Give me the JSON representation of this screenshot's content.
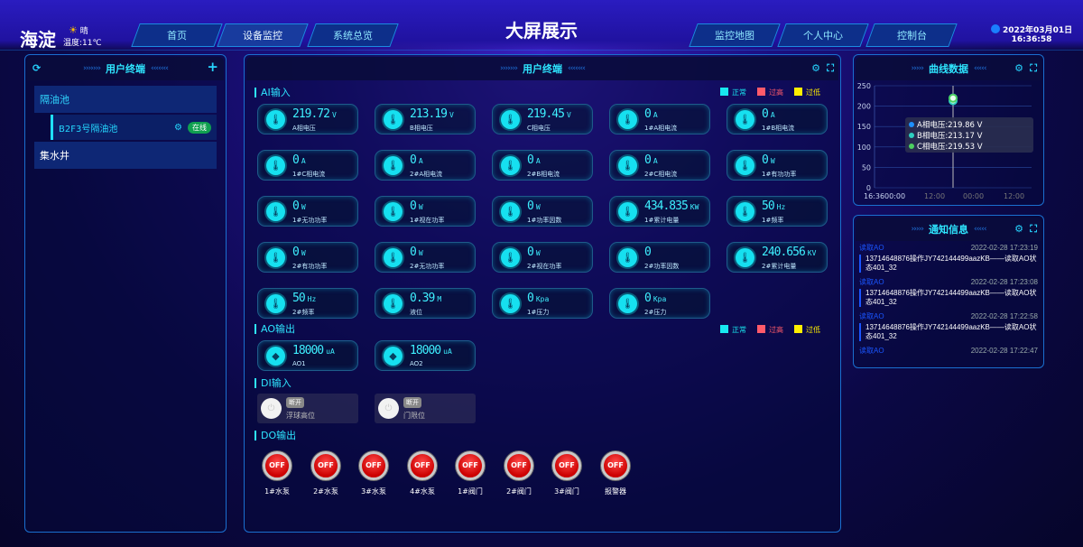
{
  "header": {
    "city": "海淀",
    "weather": "晴",
    "temperature": "温度:11℃",
    "title": "大屏展示",
    "date": "2022年03月01日",
    "time": "16:36:58",
    "nav_left": [
      "首页",
      "设备监控",
      "系统总览"
    ],
    "nav_right": [
      "监控地图",
      "个人中心",
      "控制台"
    ],
    "active_nav": "设备监控"
  },
  "left_panel": {
    "title": "用户终端",
    "groups": [
      {
        "label": "隔油池",
        "children": [
          {
            "label": "B2F3号隔油池",
            "status": "在线"
          }
        ]
      },
      {
        "label": "集水井"
      }
    ]
  },
  "center_panel": {
    "title": "用户终端",
    "legend": [
      {
        "label": "正常",
        "color": "#18e8f0"
      },
      {
        "label": "过高",
        "color": "#ff5a6a"
      },
      {
        "label": "过低",
        "color": "#ffee00"
      }
    ],
    "ai_title": "AI输入",
    "ai": [
      {
        "v": "219.72",
        "u": "V",
        "l": "A相电压"
      },
      {
        "v": "213.19",
        "u": "V",
        "l": "B相电压"
      },
      {
        "v": "219.45",
        "u": "V",
        "l": "C相电压"
      },
      {
        "v": "0",
        "u": "A",
        "l": "1#A相电流"
      },
      {
        "v": "0",
        "u": "A",
        "l": "1#B相电流"
      },
      {
        "v": "0",
        "u": "A",
        "l": "1#C相电流"
      },
      {
        "v": "0",
        "u": "A",
        "l": "2#A相电流"
      },
      {
        "v": "0",
        "u": "A",
        "l": "2#B相电流"
      },
      {
        "v": "0",
        "u": "A",
        "l": "2#C相电流"
      },
      {
        "v": "0",
        "u": "W",
        "l": "1#有功功率"
      },
      {
        "v": "0",
        "u": "W",
        "l": "1#无功功率"
      },
      {
        "v": "0",
        "u": "W",
        "l": "1#视在功率"
      },
      {
        "v": "0",
        "u": "W",
        "l": "1#功率因数"
      },
      {
        "v": "434.835",
        "u": "KW",
        "l": "1#累计电量"
      },
      {
        "v": "50",
        "u": "Hz",
        "l": "1#频率"
      },
      {
        "v": "0",
        "u": "W",
        "l": "2#有功功率"
      },
      {
        "v": "0",
        "u": "W",
        "l": "2#无功功率"
      },
      {
        "v": "0",
        "u": "W",
        "l": "2#视在功率"
      },
      {
        "v": "0",
        "u": "",
        "l": "2#功率因数"
      },
      {
        "v": "240.656",
        "u": "KV",
        "l": "2#累计电量"
      },
      {
        "v": "50",
        "u": "Hz",
        "l": "2#频率"
      },
      {
        "v": "0.39",
        "u": "M",
        "l": "液位"
      },
      {
        "v": "0",
        "u": "Kpa",
        "l": "1#压力"
      },
      {
        "v": "0",
        "u": "Kpa",
        "l": "2#压力"
      }
    ],
    "ao_title": "AO输出",
    "ao": [
      {
        "v": "18000",
        "u": "uA",
        "l": "AO1"
      },
      {
        "v": "18000",
        "u": "uA",
        "l": "AO2"
      }
    ],
    "di_title": "DI输入",
    "di": [
      {
        "state": "断开",
        "l": "浮球高位"
      },
      {
        "state": "断开",
        "l": "门限位"
      }
    ],
    "do_title": "DO输出",
    "do": [
      {
        "state": "OFF",
        "l": "1#水泵"
      },
      {
        "state": "OFF",
        "l": "2#水泵"
      },
      {
        "state": "OFF",
        "l": "3#水泵"
      },
      {
        "state": "OFF",
        "l": "4#水泵"
      },
      {
        "state": "OFF",
        "l": "1#阀门"
      },
      {
        "state": "OFF",
        "l": "2#阀门"
      },
      {
        "state": "OFF",
        "l": "3#阀门"
      },
      {
        "state": "OFF",
        "l": "报警器"
      }
    ]
  },
  "chart_panel": {
    "title": "曲线数据"
  },
  "chart_data": {
    "type": "line",
    "ylim": [
      0,
      250
    ],
    "yticks": [
      0,
      50,
      100,
      150,
      200,
      250
    ],
    "xticks": [
      "16:36",
      "00:00",
      "12:00",
      "00:00",
      "12:00"
    ],
    "grid": true,
    "series": [
      {
        "name": "A相电压",
        "color": "#1e90ff",
        "values": [
          219.86
        ]
      },
      {
        "name": "B相电压",
        "color": "#2ed0c0",
        "values": [
          213.17
        ]
      },
      {
        "name": "C相电压",
        "color": "#4cd060",
        "values": [
          219.53
        ]
      }
    ],
    "tooltip": [
      "A相电压:219.86 V",
      "B相电压:213.17 V",
      "C相电压:219.53 V"
    ]
  },
  "notice_panel": {
    "title": "通知信息",
    "items": [
      {
        "type": "读取AO",
        "time": "2022-02-28 17:23:19",
        "text": "13714648876操作JY742144499aazKB——读取AO状态401_32"
      },
      {
        "type": "读取AO",
        "time": "2022-02-28 17:23:08",
        "text": "13714648876操作JY742144499aazKB——读取AO状态401_32"
      },
      {
        "type": "读取AO",
        "time": "2022-02-28 17:22:58",
        "text": "13714648876操作JY742144499aazKB——读取AO状态401_32"
      },
      {
        "type": "读取AO",
        "time": "2022-02-28 17:22:47",
        "text": ""
      }
    ]
  }
}
